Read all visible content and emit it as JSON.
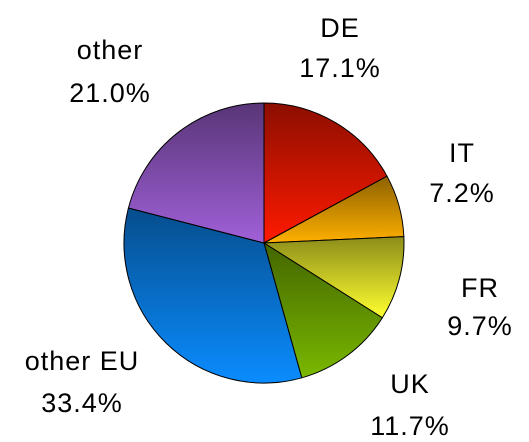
{
  "chart_data": {
    "type": "pie",
    "categories": [
      "DE",
      "IT",
      "FR",
      "UK",
      "other EU",
      "other"
    ],
    "values": [
      17.1,
      7.2,
      9.7,
      11.7,
      33.4,
      21.0
    ],
    "value_labels": [
      "17.1%",
      "7.2%",
      "9.7%",
      "11.7%",
      "33.4%",
      "21.0%"
    ],
    "colors": [
      "#ff1a00",
      "#ffb000",
      "#ffff30",
      "#7ab800",
      "#0a8cff",
      "#a060d8"
    ]
  }
}
